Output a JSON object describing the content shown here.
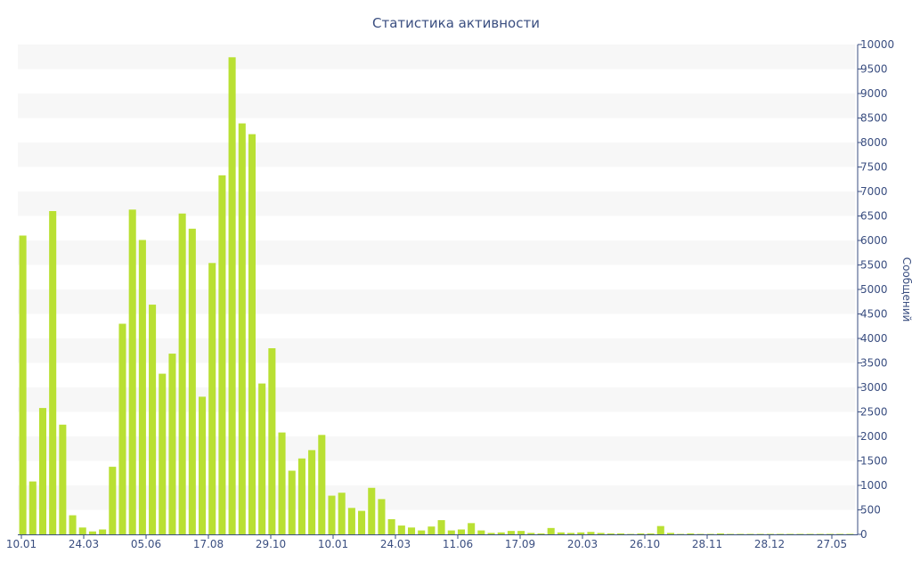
{
  "chart_data": {
    "type": "bar",
    "title": "Статистика активности",
    "ylabel": "Сообщений",
    "xlabel": "",
    "ylim": [
      0,
      10000
    ],
    "y_ticks": [
      0,
      500,
      1000,
      1500,
      2000,
      2500,
      3000,
      3500,
      4000,
      4500,
      5000,
      5500,
      6000,
      6500,
      7000,
      7500,
      8000,
      8500,
      9000,
      9500,
      10000
    ],
    "x_tick_labels": [
      "10.01",
      "24.03",
      "05.06",
      "17.08",
      "29.10",
      "10.01",
      "24.03",
      "11.06",
      "17.09",
      "20.03",
      "26.10",
      "28.11",
      "28.12",
      "27.05"
    ],
    "grid": "horizontal alternating bands",
    "axis_position": "right",
    "colors": {
      "bar": "#b9e033",
      "text": "#3a4e80",
      "band": "#f7f7f7",
      "axis": "#3a4e80"
    },
    "values": [
      6100,
      1080,
      2580,
      6600,
      2240,
      390,
      140,
      60,
      100,
      1380,
      4300,
      6630,
      6010,
      4690,
      3280,
      3690,
      6550,
      6240,
      2810,
      5540,
      7330,
      9740,
      8390,
      8170,
      3080,
      3800,
      2080,
      1300,
      1550,
      1720,
      2030,
      790,
      850,
      540,
      480,
      950,
      720,
      310,
      180,
      140,
      80,
      160,
      290,
      80,
      100,
      230,
      80,
      30,
      40,
      70,
      70,
      30,
      20,
      130,
      40,
      30,
      40,
      50,
      30,
      20,
      20,
      10,
      20,
      20,
      170,
      30,
      10,
      20,
      10,
      10,
      20,
      10,
      10,
      10,
      10,
      10,
      10,
      10,
      10,
      10,
      10,
      10,
      10,
      10
    ]
  }
}
